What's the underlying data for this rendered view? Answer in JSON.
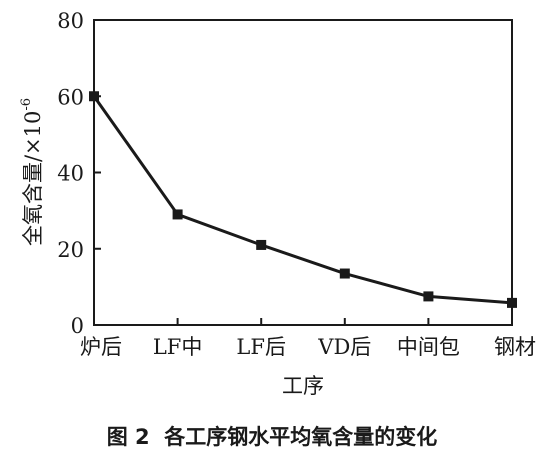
{
  "caption": "图 2  各工序钢水平均氧含量的变化",
  "chart_data": {
    "type": "line",
    "categories": [
      "炉后",
      "LF中",
      "LF后",
      "VD后",
      "中间包",
      "钢材"
    ],
    "series": [
      {
        "values": [
          60,
          29,
          21,
          13.5,
          7.5,
          5.8
        ]
      }
    ],
    "xlabel": "工序",
    "ylabel_main": "全氧含量/×10",
    "ylabel_exp": "-6",
    "ylim": [
      0,
      80
    ],
    "yticks": [
      0,
      20,
      40,
      60,
      80
    ],
    "grid": false,
    "legend": "none",
    "colors": {
      "line": "#1a1a1a",
      "marker": "#1a1a1a",
      "axis": "#1a1a1a"
    },
    "marker": "square"
  }
}
